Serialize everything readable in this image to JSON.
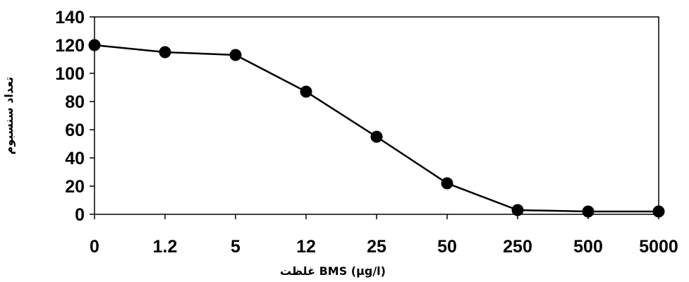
{
  "chart_data": {
    "type": "line",
    "title": "",
    "xlabel": "غلظت BMS (µg/l)",
    "ylabel": "تعداد سنسبوم",
    "categories": [
      "0",
      "1.2",
      "5",
      "12",
      "25",
      "50",
      "250",
      "500",
      "5000"
    ],
    "series": [
      {
        "values": [
          120,
          115,
          113,
          87,
          55,
          22,
          3,
          2,
          2
        ]
      }
    ],
    "ylim": [
      0,
      140
    ],
    "yticks": [
      0,
      20,
      40,
      60,
      80,
      100,
      120,
      140
    ],
    "grid": false,
    "legend": "none",
    "colors": {
      "line": "#000000",
      "marker": "#000000",
      "axis": "#000000"
    }
  }
}
